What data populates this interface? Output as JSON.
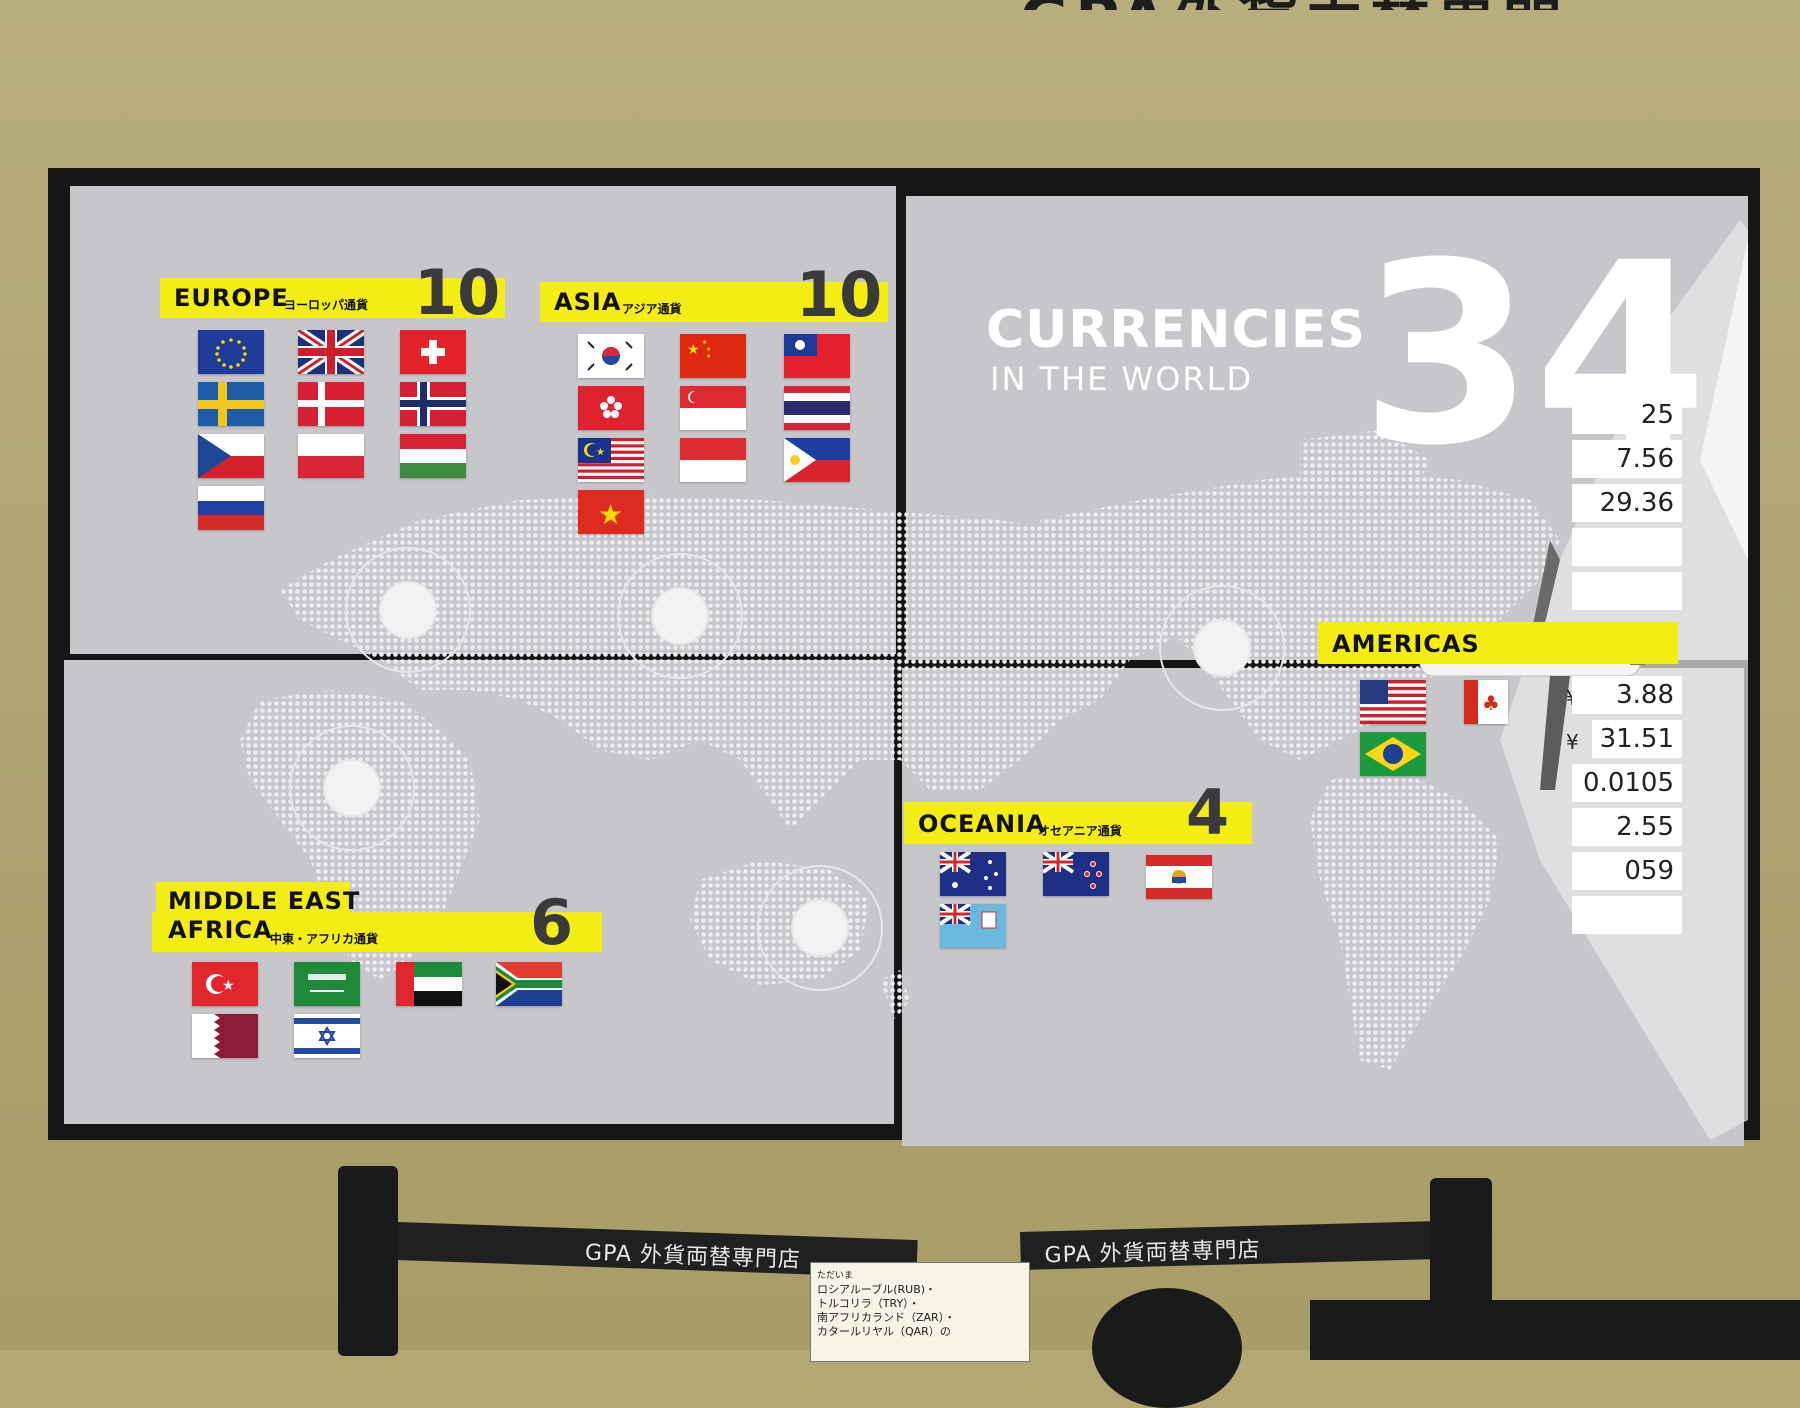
{
  "header": {
    "partial_sign": "GPA外貨両替専門"
  },
  "title": {
    "main": "CURRENCIES",
    "sub": "IN THE WORLD",
    "total": "34"
  },
  "regions": {
    "europe": {
      "name": "EUROPE",
      "name_jp": "ヨーロッパ通貨",
      "count": "10"
    },
    "asia": {
      "name": "ASIA",
      "name_jp": "アジア通貨",
      "count": "10"
    },
    "mea": {
      "name_line1": "MIDDLE EAST",
      "name_line2": "AFRICA",
      "name_jp": "中東・アフリカ通貨",
      "count": "6"
    },
    "oceania": {
      "name": "OCEANIA",
      "name_jp": "オセアニア通貨",
      "count": "4"
    },
    "americas": {
      "name": "AMERICAS"
    }
  },
  "rates": {
    "yen_symbol": "¥",
    "values": [
      "25",
      "7.56",
      "29.36",
      "3.88",
      "31.51",
      "0.0105",
      "2.55",
      "059"
    ]
  },
  "belt": {
    "left": "GPA 外貨両替専門店",
    "right": "GPA 外貨両替専門店"
  },
  "notice": {
    "header": "ただいま",
    "line1": "ロシアルーブル(RUB)・",
    "line2": "トルコリラ（TRY）・",
    "line3": "南アフリカランド（ZAR）・",
    "line4": "カタールリヤル（QAR）の"
  },
  "colors": {
    "accent_yellow": "#f4ed14",
    "screen_gray": "#c7c7cb",
    "wall": "#b3a874"
  }
}
